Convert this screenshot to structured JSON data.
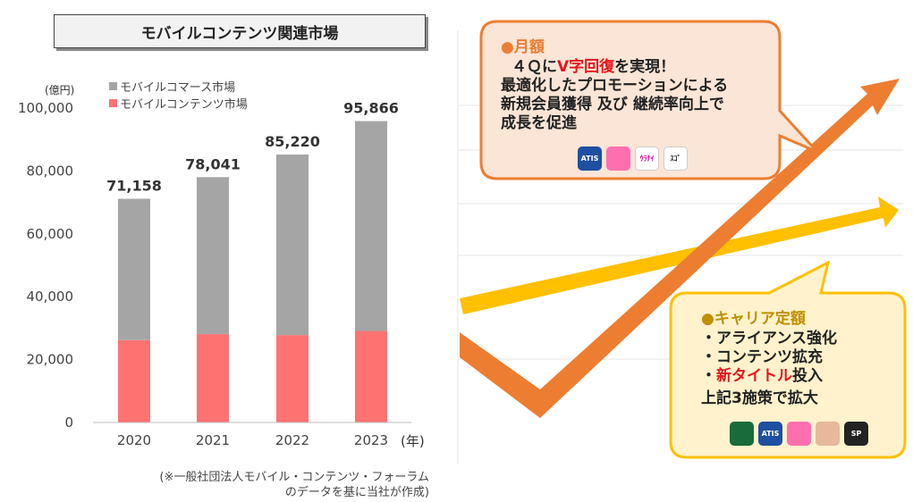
{
  "title": "モバイルコンテンツ関連市場",
  "unit_label": "(億円)",
  "legend": [
    {
      "label": "モバイルコマース市場",
      "color": "#a5a5a5"
    },
    {
      "label": "モバイルコンテンツ市場",
      "color": "#ff7272"
    }
  ],
  "x_suffix": "(年)",
  "source_lines": [
    "(※一般社団法人モバイル・コンテンツ・フォーラム",
    "のデータを基に当社が作成)"
  ],
  "chart_data": {
    "type": "bar",
    "stacked": true,
    "categories": [
      "2020",
      "2021",
      "2022",
      "2023"
    ],
    "series": [
      {
        "name": "モバイルコンテンツ市場",
        "values": [
          26200,
          28100,
          27800,
          29100
        ],
        "color": "#ff7272"
      },
      {
        "name": "モバイルコマース市場",
        "values": [
          44958,
          49941,
          57420,
          66766
        ],
        "color": "#a5a5a5"
      }
    ],
    "totals": [
      71158,
      78041,
      85220,
      95866
    ],
    "total_labels": [
      "71,158",
      "78,041",
      "85,220",
      "95,866"
    ],
    "yticks": [
      0,
      20000,
      40000,
      60000,
      80000,
      100000
    ],
    "ytick_labels": [
      "0",
      "20,000",
      "40,000",
      "60,000",
      "80,000",
      "100,000"
    ],
    "ylim": [
      0,
      100000
    ],
    "grid": false
  },
  "callout_monthly": {
    "title": "●月額",
    "line1_pre": "４Ｑに",
    "line1_red": "V字回復",
    "line1_post": "を実現！",
    "line2": "最適化したプロモーションによる",
    "line3": "新規会員獲得 及び 継続率向上で",
    "line4": "成長を促進",
    "apps": [
      "ATIS",
      "",
      "ｳﾗﾅｲ",
      "ｽｺﾞ"
    ]
  },
  "callout_carrier": {
    "title": "●キャリア定額",
    "item1": "・アライアンス強化",
    "item2": "・コンテンツ拡充",
    "item3_pre": "・",
    "item3_red": "新タイトル",
    "item3_post": "投入",
    "summary": "上記3施策で拡大",
    "apps": [
      "",
      "ATIS",
      "",
      "",
      "SP"
    ]
  },
  "colors": {
    "orange_arrow": "#ed7d31",
    "yellow_arrow": "#ffc000",
    "callout1_bg": "#fbe5d6",
    "callout2_bg": "#fff2cc"
  }
}
